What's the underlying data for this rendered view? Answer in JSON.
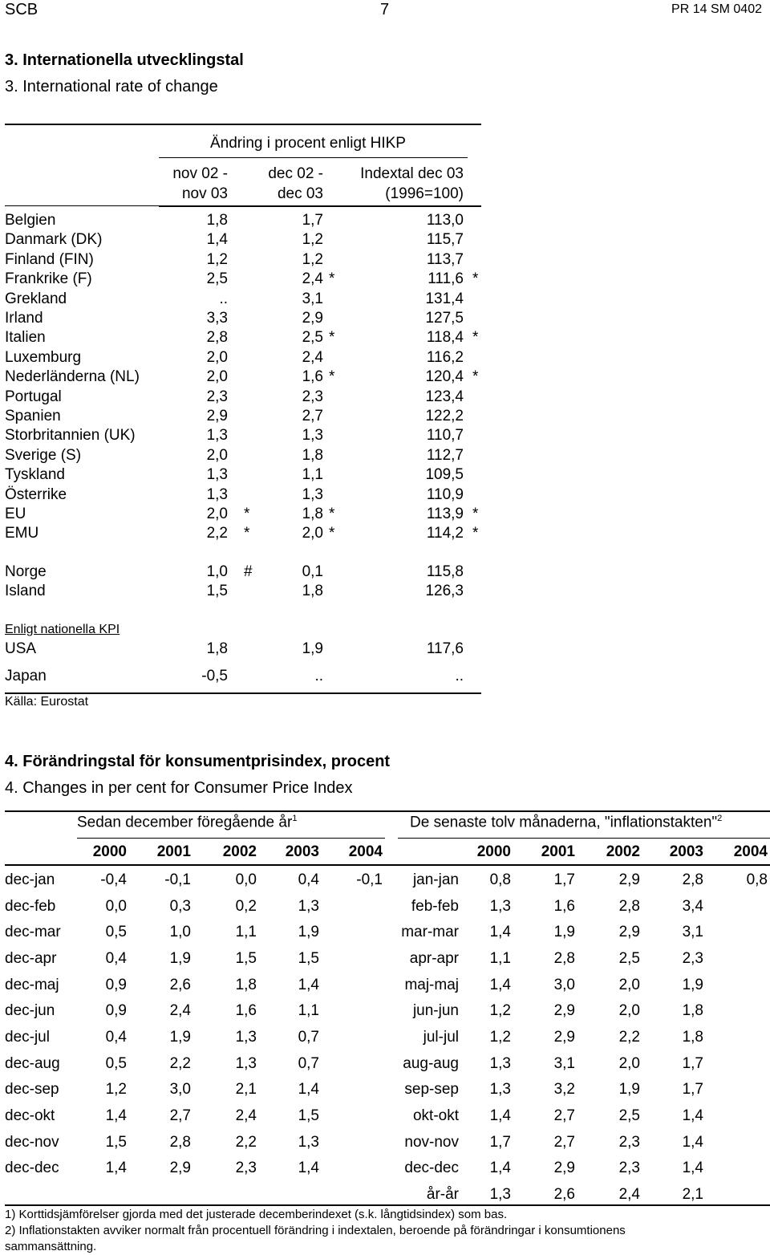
{
  "header": {
    "left": "SCB",
    "center": "7",
    "right": "PR 14 SM 0402"
  },
  "section3": {
    "title_sv": "3. Internationella utvecklingstal",
    "title_en": "3. International rate of change",
    "group_header": "Ändring i procent enligt HIKP",
    "col1_line1": "nov 02 -",
    "col1_line2": "nov 03",
    "col2_line1": "dec 02 -",
    "col2_line2": "dec 03",
    "col3_line1": "Indextal dec 03",
    "col3_line2": "(1996=100)",
    "rows": [
      {
        "country": "Belgien",
        "v1": "1,8",
        "m1": "",
        "v2": "1,7",
        "m2": "",
        "v3": "113,0",
        "m3": ""
      },
      {
        "country": "Danmark (DK)",
        "v1": "1,4",
        "m1": "",
        "v2": "1,2",
        "m2": "",
        "v3": "115,7",
        "m3": ""
      },
      {
        "country": "Finland (FIN)",
        "v1": "1,2",
        "m1": "",
        "v2": "1,2",
        "m2": "",
        "v3": "113,7",
        "m3": ""
      },
      {
        "country": "Frankrike (F)",
        "v1": "2,5",
        "m1": "",
        "v2": "2,4",
        "m2": "*",
        "v3": "111,6",
        "m3": "*"
      },
      {
        "country": "Grekland",
        "v1": "..",
        "m1": "",
        "v2": "3,1",
        "m2": "",
        "v3": "131,4",
        "m3": ""
      },
      {
        "country": "Irland",
        "v1": "3,3",
        "m1": "",
        "v2": "2,9",
        "m2": "",
        "v3": "127,5",
        "m3": ""
      },
      {
        "country": "Italien",
        "v1": "2,8",
        "m1": "",
        "v2": "2,5",
        "m2": "*",
        "v3": "118,4",
        "m3": "*"
      },
      {
        "country": "Luxemburg",
        "v1": "2,0",
        "m1": "",
        "v2": "2,4",
        "m2": "",
        "v3": "116,2",
        "m3": ""
      },
      {
        "country": "Nederländerna (NL)",
        "v1": "2,0",
        "m1": "",
        "v2": "1,6",
        "m2": "*",
        "v3": "120,4",
        "m3": "*"
      },
      {
        "country": "Portugal",
        "v1": "2,3",
        "m1": "",
        "v2": "2,3",
        "m2": "",
        "v3": "123,4",
        "m3": ""
      },
      {
        "country": "Spanien",
        "v1": "2,9",
        "m1": "",
        "v2": "2,7",
        "m2": "",
        "v3": "122,2",
        "m3": ""
      },
      {
        "country": "Storbritannien (UK)",
        "v1": "1,3",
        "m1": "",
        "v2": "1,3",
        "m2": "",
        "v3": "110,7",
        "m3": ""
      },
      {
        "country": "Sverige (S)",
        "v1": "2,0",
        "m1": "",
        "v2": "1,8",
        "m2": "",
        "v3": "112,7",
        "m3": ""
      },
      {
        "country": "Tyskland",
        "v1": "1,3",
        "m1": "",
        "v2": "1,1",
        "m2": "",
        "v3": "109,5",
        "m3": ""
      },
      {
        "country": "Österrike",
        "v1": "1,3",
        "m1": "",
        "v2": "1,3",
        "m2": "",
        "v3": "110,9",
        "m3": ""
      },
      {
        "country": "EU",
        "v1": "2,0",
        "m1": "*",
        "v2": "1,8",
        "m2": "*",
        "v3": "113,9",
        "m3": "*"
      },
      {
        "country": "EMU",
        "v1": "2,2",
        "m1": "*",
        "v2": "2,0",
        "m2": "*",
        "v3": "114,2",
        "m3": "*"
      }
    ],
    "rows_extra": [
      {
        "country": "Norge",
        "v1": "1,0",
        "m1": "#",
        "v2": "0,1",
        "m2": "",
        "v3": "115,8",
        "m3": ""
      },
      {
        "country": "Island",
        "v1": "1,5",
        "m1": "",
        "v2": "1,8",
        "m2": "",
        "v3": "126,3",
        "m3": ""
      }
    ],
    "kpi_label": "Enligt nationella KPI",
    "rows_kpi": [
      {
        "country": "USA",
        "v1": "1,8",
        "m1": "",
        "v2": "1,9",
        "m2": "",
        "v3": "117,6",
        "m3": ""
      },
      {
        "country": "Japan",
        "v1": "-0,5",
        "m1": "",
        "v2": "..",
        "m2": "",
        "v3": "..",
        "m3": ""
      }
    ],
    "source": "Källa: Eurostat"
  },
  "section4": {
    "title_sv": "4. Förändringstal för konsumentprisindex, procent",
    "title_en": "4. Changes in per cent for Consumer Price Index",
    "left_header": "Sedan december föregående år",
    "left_sup": "1",
    "right_header": "De senaste tolv månaderna, \"inflationstakten\"",
    "right_sup": "2",
    "years": [
      "2000",
      "2001",
      "2002",
      "2003",
      "2004"
    ],
    "left_rows": [
      {
        "label": "dec-jan",
        "vals": [
          "-0,4",
          "-0,1",
          "0,0",
          "0,4",
          "-0,1"
        ]
      },
      {
        "label": "dec-feb",
        "vals": [
          "0,0",
          "0,3",
          "0,2",
          "1,3",
          ""
        ]
      },
      {
        "label": "dec-mar",
        "vals": [
          "0,5",
          "1,0",
          "1,1",
          "1,9",
          ""
        ]
      },
      {
        "label": "dec-apr",
        "vals": [
          "0,4",
          "1,9",
          "1,5",
          "1,5",
          ""
        ]
      },
      {
        "label": "dec-maj",
        "vals": [
          "0,9",
          "2,6",
          "1,8",
          "1,4",
          ""
        ]
      },
      {
        "label": "dec-jun",
        "vals": [
          "0,9",
          "2,4",
          "1,6",
          "1,1",
          ""
        ]
      },
      {
        "label": "dec-jul",
        "vals": [
          "0,4",
          "1,9",
          "1,3",
          "0,7",
          ""
        ]
      },
      {
        "label": "dec-aug",
        "vals": [
          "0,5",
          "2,2",
          "1,3",
          "0,7",
          ""
        ]
      },
      {
        "label": "dec-sep",
        "vals": [
          "1,2",
          "3,0",
          "2,1",
          "1,4",
          ""
        ]
      },
      {
        "label": "dec-okt",
        "vals": [
          "1,4",
          "2,7",
          "2,4",
          "1,5",
          ""
        ]
      },
      {
        "label": "dec-nov",
        "vals": [
          "1,5",
          "2,8",
          "2,2",
          "1,3",
          ""
        ]
      },
      {
        "label": "dec-dec",
        "vals": [
          "1,4",
          "2,9",
          "2,3",
          "1,4",
          ""
        ]
      }
    ],
    "right_rows": [
      {
        "label": "jan-jan",
        "vals": [
          "0,8",
          "1,7",
          "2,9",
          "2,8",
          "0,8"
        ]
      },
      {
        "label": "feb-feb",
        "vals": [
          "1,3",
          "1,6",
          "2,8",
          "3,4",
          ""
        ]
      },
      {
        "label": "mar-mar",
        "vals": [
          "1,4",
          "1,9",
          "2,9",
          "3,1",
          ""
        ]
      },
      {
        "label": "apr-apr",
        "vals": [
          "1,1",
          "2,8",
          "2,5",
          "2,3",
          ""
        ]
      },
      {
        "label": "maj-maj",
        "vals": [
          "1,4",
          "3,0",
          "2,0",
          "1,9",
          ""
        ]
      },
      {
        "label": "jun-jun",
        "vals": [
          "1,2",
          "2,9",
          "2,0",
          "1,8",
          ""
        ]
      },
      {
        "label": "jul-jul",
        "vals": [
          "1,2",
          "2,9",
          "2,2",
          "1,8",
          ""
        ]
      },
      {
        "label": "aug-aug",
        "vals": [
          "1,3",
          "3,1",
          "2,0",
          "1,7",
          ""
        ]
      },
      {
        "label": "sep-sep",
        "vals": [
          "1,3",
          "3,2",
          "1,9",
          "1,7",
          ""
        ]
      },
      {
        "label": "okt-okt",
        "vals": [
          "1,4",
          "2,7",
          "2,5",
          "1,4",
          ""
        ]
      },
      {
        "label": "nov-nov",
        "vals": [
          "1,7",
          "2,7",
          "2,3",
          "1,4",
          ""
        ]
      },
      {
        "label": "dec-dec",
        "vals": [
          "1,4",
          "2,9",
          "2,3",
          "1,4",
          ""
        ]
      },
      {
        "label": "år-år",
        "vals": [
          "1,3",
          "2,6",
          "2,4",
          "2,1",
          ""
        ]
      }
    ],
    "footnote1": "1) Korttidsjämförelser gjorda med det justerade decemberindexet (s.k. långtidsindex) som bas.",
    "footnote2a": "2) Inflationstakten avviker normalt från procentuell förändring i indextalen, beroende på förändringar i konsumtionens",
    "footnote2b": "sammansättning."
  }
}
